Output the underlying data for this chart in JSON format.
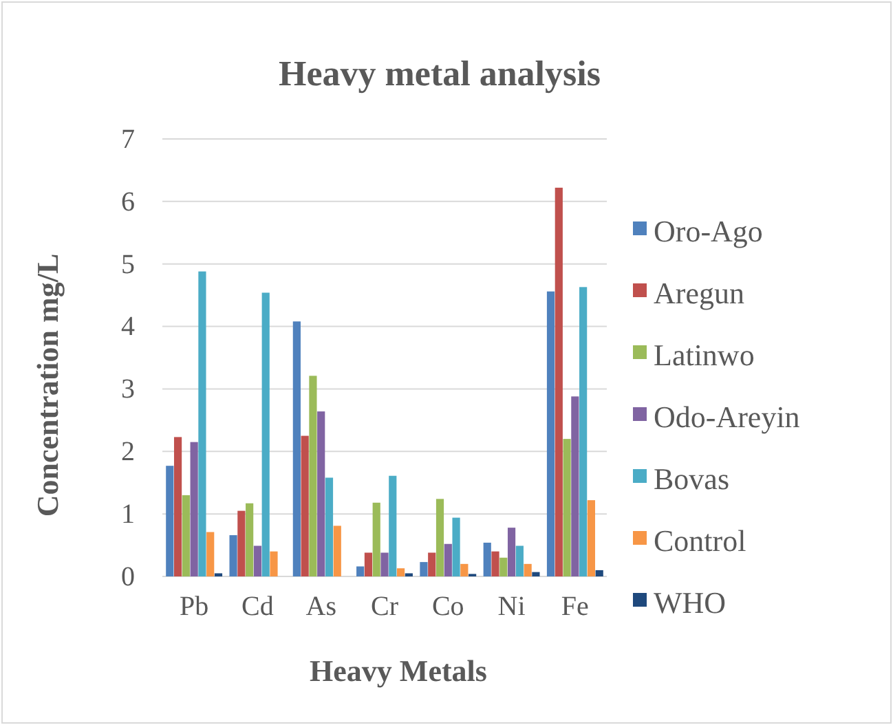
{
  "chart_data": {
    "type": "bar",
    "title": "Heavy metal analysis",
    "xlabel": "Heavy Metals",
    "ylabel": "Concentration mg/L",
    "categories": [
      "Pb",
      "Cd",
      "As",
      "Cr",
      "Co",
      "Ni",
      "Fe"
    ],
    "series": [
      {
        "name": "Oro-Ago",
        "color": "#4f81bd",
        "values": [
          1.77,
          0.66,
          4.08,
          0.16,
          0.23,
          0.54,
          4.56
        ]
      },
      {
        "name": "Aregun",
        "color": "#c0504d",
        "values": [
          2.23,
          1.05,
          2.25,
          0.38,
          0.38,
          0.4,
          6.22
        ]
      },
      {
        "name": "Latinwo",
        "color": "#9bbb59",
        "values": [
          1.3,
          1.17,
          3.21,
          1.18,
          1.24,
          0.3,
          2.2
        ]
      },
      {
        "name": "Odo-Areyin",
        "color": "#8064a2",
        "values": [
          2.15,
          0.49,
          2.64,
          0.38,
          0.52,
          0.78,
          2.88
        ]
      },
      {
        "name": "Bovas",
        "color": "#4bacc6",
        "values": [
          4.88,
          4.54,
          1.58,
          1.61,
          0.94,
          0.49,
          4.63
        ]
      },
      {
        "name": "Control",
        "color": "#f79646",
        "values": [
          0.71,
          0.4,
          0.81,
          0.13,
          0.2,
          0.2,
          1.22
        ]
      },
      {
        "name": "WHO",
        "color": "#1f497d",
        "values": [
          0.05,
          null,
          null,
          0.05,
          0.04,
          0.07,
          0.1
        ]
      }
    ],
    "ylim": [
      0,
      7
    ],
    "yticks": [
      0,
      1,
      2,
      3,
      4,
      5,
      6,
      7
    ],
    "grid": "y",
    "legend": "right"
  }
}
